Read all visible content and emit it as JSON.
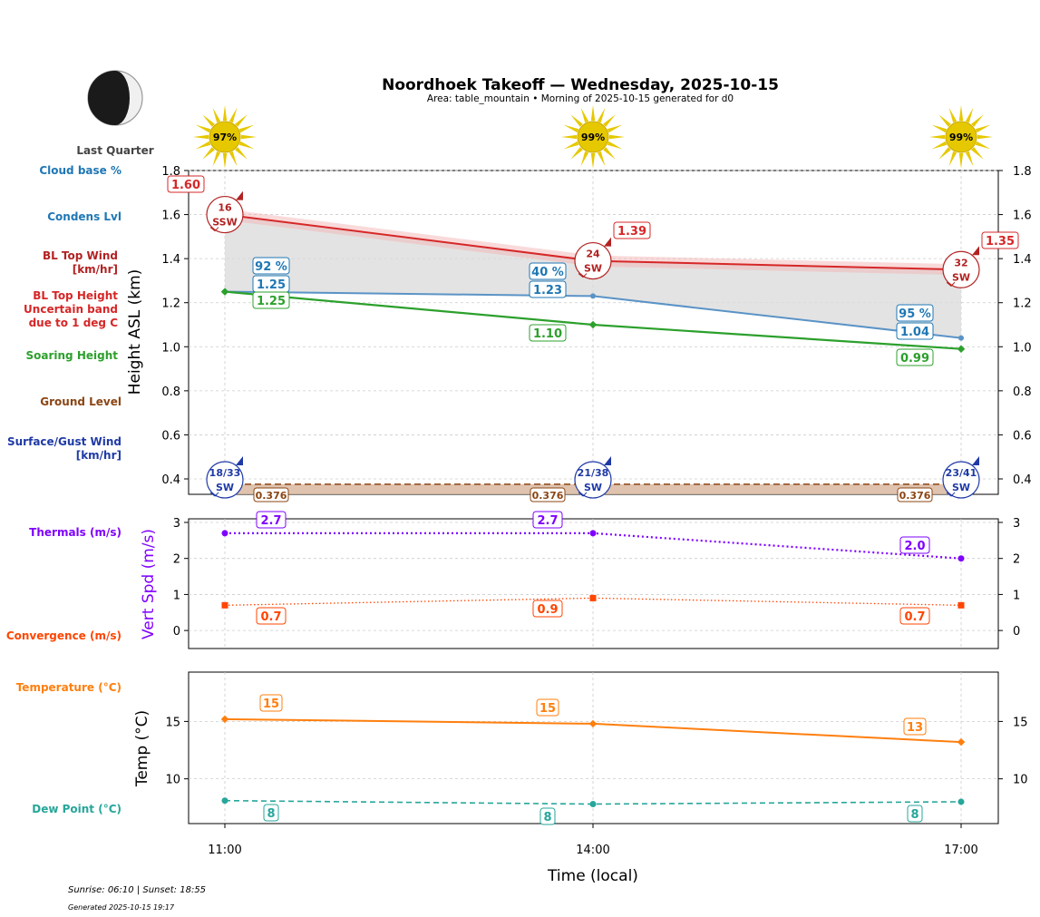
{
  "header": {
    "title": "Noordhoek Takeoff — Wednesday, 2025-10-15",
    "subtitle": "Area: table_mountain • Morning of 2025-10-15 generated for d0",
    "moon_phase": "Last Quarter"
  },
  "side_labels": {
    "cloud_base": "Cloud base %",
    "condens": "Condens Lvl",
    "bl_wind": [
      "BL Top Wind",
      "[km/hr]"
    ],
    "bl_height": [
      "BL Top Height",
      "Uncertain band",
      "due to 1 deg C"
    ],
    "soaring": "Soaring Height",
    "ground": "Ground Level",
    "surface_wind": [
      "Surface/Gust Wind",
      "[km/hr]"
    ],
    "thermals": "Thermals (m/s)",
    "convergence": "Convergence (m/s)",
    "temperature": "Temperature (°C)",
    "dewpoint": "Dew Point (°C)"
  },
  "colors": {
    "cloud": "#1f77b4",
    "condens": "#1f77b4",
    "bl_wind": "#b22222",
    "bl_height": "#d62728",
    "soaring": "#2ca02c",
    "ground": "#8b4513",
    "surface_wind": "#1f3aa6",
    "thermals": "#7f00ff",
    "convergence": "#ff4500",
    "temperature": "#ff7f0e",
    "dewpoint": "#26a69a",
    "sun": "#e6c800"
  },
  "footer": {
    "sun": "Sunrise: 06:10 | Sunset: 18:55",
    "generated": "Generated 2025-10-15 19:17"
  },
  "chart_data": [
    {
      "type": "line",
      "panel": "height",
      "ylabel": "Height ASL (km)",
      "ylim": [
        0.33,
        1.8
      ],
      "yticks": [
        "0.4",
        "0.6",
        "0.8",
        "1.0",
        "1.2",
        "1.4",
        "1.6",
        "1.8"
      ],
      "x": [
        "11:00",
        "14:00",
        "17:00"
      ],
      "sun_percent": [
        "97%",
        "99%",
        "99%"
      ],
      "series": [
        {
          "key": "bl_top",
          "values": [
            1.6,
            1.39,
            1.35
          ],
          "labels": [
            "1.60",
            "1.39",
            "1.35"
          ]
        },
        {
          "key": "condens",
          "values": [
            1.25,
            1.23,
            1.04
          ],
          "labels": [
            "1.25",
            "1.23",
            "1.04"
          ]
        },
        {
          "key": "cloud_pct",
          "labels": [
            "92 %",
            "40 %",
            "95 %"
          ]
        },
        {
          "key": "soaring",
          "values": [
            1.25,
            1.1,
            0.99
          ],
          "labels": [
            "1.25",
            "1.10",
            "0.99"
          ]
        },
        {
          "key": "ground",
          "values": [
            0.376,
            0.376,
            0.376
          ],
          "labels": [
            "0.376",
            "0.376",
            "0.376"
          ]
        }
      ],
      "bl_wind": [
        {
          "speed": "16",
          "dir": "SSW"
        },
        {
          "speed": "24",
          "dir": "SW"
        },
        {
          "speed": "32",
          "dir": "SW"
        }
      ],
      "surface_wind": [
        {
          "speed": "18/33",
          "dir": "SW"
        },
        {
          "speed": "21/38",
          "dir": "SW"
        },
        {
          "speed": "23/41",
          "dir": "SW"
        }
      ]
    },
    {
      "type": "line",
      "panel": "vertical_speed",
      "ylabel": "Vert Spd (m/s)",
      "ylim": [
        -0.5,
        3.1
      ],
      "yticks": [
        "0",
        "1",
        "2",
        "3"
      ],
      "x": [
        "11:00",
        "14:00",
        "17:00"
      ],
      "series": [
        {
          "key": "thermals",
          "values": [
            2.7,
            2.7,
            2.0
          ],
          "labels": [
            "2.7",
            "2.7",
            "2.0"
          ]
        },
        {
          "key": "convergence",
          "values": [
            0.7,
            0.9,
            0.7
          ],
          "labels": [
            "0.7",
            "0.9",
            "0.7"
          ]
        }
      ]
    },
    {
      "type": "line",
      "panel": "temperature",
      "ylabel": "Temp (°C)",
      "xlabel": "Time (local)",
      "ylim": [
        6.1,
        19.3
      ],
      "yticks": [
        "10",
        "15"
      ],
      "x": [
        "11:00",
        "14:00",
        "17:00"
      ],
      "series": [
        {
          "key": "temperature",
          "values": [
            15.2,
            14.8,
            13.2
          ],
          "labels": [
            "15",
            "15",
            "13"
          ]
        },
        {
          "key": "dewpoint",
          "values": [
            8.1,
            7.8,
            8.0
          ],
          "labels": [
            "8",
            "8",
            "8"
          ]
        }
      ]
    }
  ]
}
